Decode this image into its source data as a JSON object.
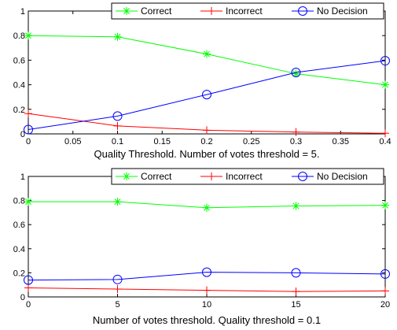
{
  "chart_data": [
    {
      "type": "line",
      "x": [
        0,
        0.1,
        0.2,
        0.3,
        0.4
      ],
      "xlim": [
        0,
        0.4
      ],
      "ylim": [
        0,
        1
      ],
      "xticks": [
        "0",
        "0.05",
        "0.1",
        "0.15",
        "0.2",
        "0.25",
        "0.3",
        "0.35",
        "0.4"
      ],
      "xtick_values": [
        0,
        0.05,
        0.1,
        0.15,
        0.2,
        0.25,
        0.3,
        0.35,
        0.4
      ],
      "yticks": [
        "0",
        "0.2",
        "0.4",
        "0.6",
        "0.8",
        "1"
      ],
      "ytick_values": [
        0,
        0.2,
        0.4,
        0.6,
        0.8,
        1
      ],
      "xlabel": "Quality Threshold. Number of votes threshold = 5.",
      "legend_position": "top-right",
      "grid": false,
      "series": [
        {
          "name": "Correct",
          "marker": "asterisk",
          "color": "#00ff00",
          "values": [
            0.8,
            0.79,
            0.65,
            0.49,
            0.4
          ]
        },
        {
          "name": "Incorrect",
          "marker": "plus",
          "color": "#ff0000",
          "values": [
            0.165,
            0.065,
            0.03,
            0.015,
            0.005
          ]
        },
        {
          "name": "No Decision",
          "marker": "circle",
          "color": "#0000ff",
          "values": [
            0.035,
            0.145,
            0.32,
            0.5,
            0.595
          ]
        }
      ]
    },
    {
      "type": "line",
      "x": [
        0,
        5,
        10,
        15,
        20
      ],
      "xlim": [
        0,
        20
      ],
      "ylim": [
        0,
        1
      ],
      "xticks": [
        "0",
        "5",
        "10",
        "15",
        "20"
      ],
      "xtick_values": [
        0,
        5,
        10,
        15,
        20
      ],
      "yticks": [
        "0",
        "0.2",
        "0.4",
        "0.6",
        "0.8",
        "1"
      ],
      "ytick_values": [
        0,
        0.2,
        0.4,
        0.6,
        0.8,
        1
      ],
      "xlabel": "Number of votes threshold. Quality threshold = 0.1",
      "legend_position": "top-right",
      "grid": false,
      "series": [
        {
          "name": "Correct",
          "marker": "asterisk",
          "color": "#00ff00",
          "values": [
            0.79,
            0.79,
            0.74,
            0.755,
            0.76
          ]
        },
        {
          "name": "Incorrect",
          "marker": "plus",
          "color": "#ff0000",
          "values": [
            0.075,
            0.065,
            0.055,
            0.045,
            0.05
          ]
        },
        {
          "name": "No Decision",
          "marker": "circle",
          "color": "#0000ff",
          "values": [
            0.14,
            0.145,
            0.205,
            0.2,
            0.19
          ]
        }
      ]
    }
  ]
}
